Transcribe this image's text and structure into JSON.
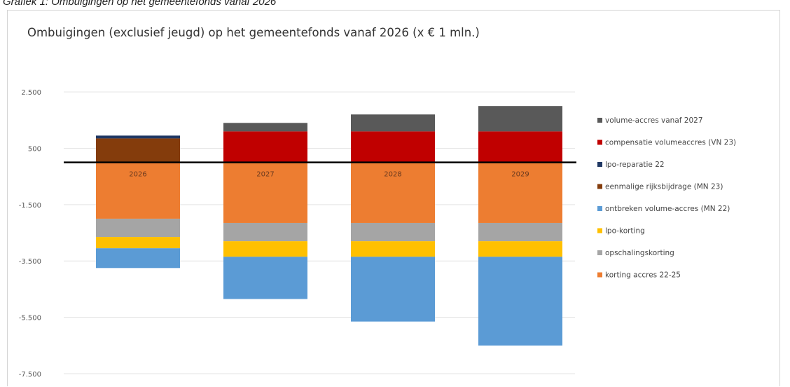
{
  "caption": "Grafiek 1: Ombuigingen op het gemeentefonds vanaf 2026",
  "chart_data": {
    "type": "bar",
    "stacked": true,
    "title": "Ombuigingen (exclusief jeugd) op het gemeentefonds vanaf 2026 (x € 1 mln.)",
    "categories": [
      "2026",
      "2027",
      "2028",
      "2029"
    ],
    "ylim": [
      -7500,
      3000
    ],
    "yticks": [
      2500,
      500,
      -1500,
      -3500,
      -5500,
      -7500
    ],
    "ytick_labels": [
      "2.500",
      "500",
      "-1.500",
      "-3.500",
      "-5.500",
      "-7.500"
    ],
    "grid": true,
    "legend_position": "right",
    "series": [
      {
        "name": "korting accres 22-25",
        "color": "#ed7d31",
        "values": [
          -2000,
          -2150,
          -2150,
          -2150
        ]
      },
      {
        "name": "opschalingskorting",
        "color": "#a5a5a5",
        "values": [
          -650,
          -650,
          -650,
          -650
        ]
      },
      {
        "name": "lpo-korting",
        "color": "#ffc000",
        "values": [
          -400,
          -550,
          -550,
          -550
        ]
      },
      {
        "name": "ontbreken volume-accres (MN 22)",
        "color": "#5b9bd5",
        "values": [
          -700,
          -1500,
          -2300,
          -3150
        ]
      },
      {
        "name": "eenmalige rijksbijdrage (MN 23)",
        "color": "#843c0c",
        "values": [
          850,
          0,
          0,
          0
        ]
      },
      {
        "name": "lpo-reparatie 22",
        "color": "#203864",
        "values": [
          100,
          0,
          0,
          0
        ]
      },
      {
        "name": "compensatie volumeaccres (VN 23)",
        "color": "#c00000",
        "values": [
          0,
          1100,
          1100,
          1100
        ]
      },
      {
        "name": "volume-accres vanaf 2027",
        "color": "#595959",
        "values": [
          0,
          300,
          600,
          900
        ]
      }
    ],
    "legend_order": [
      "volume-accres vanaf 2027",
      "compensatie volumeaccres (VN 23)",
      "lpo-reparatie 22",
      "eenmalige rijksbijdrage (MN 23)",
      "ontbreken volume-accres (MN 22)",
      "lpo-korting",
      "opschalingskorting",
      "korting accres 22-25"
    ]
  }
}
